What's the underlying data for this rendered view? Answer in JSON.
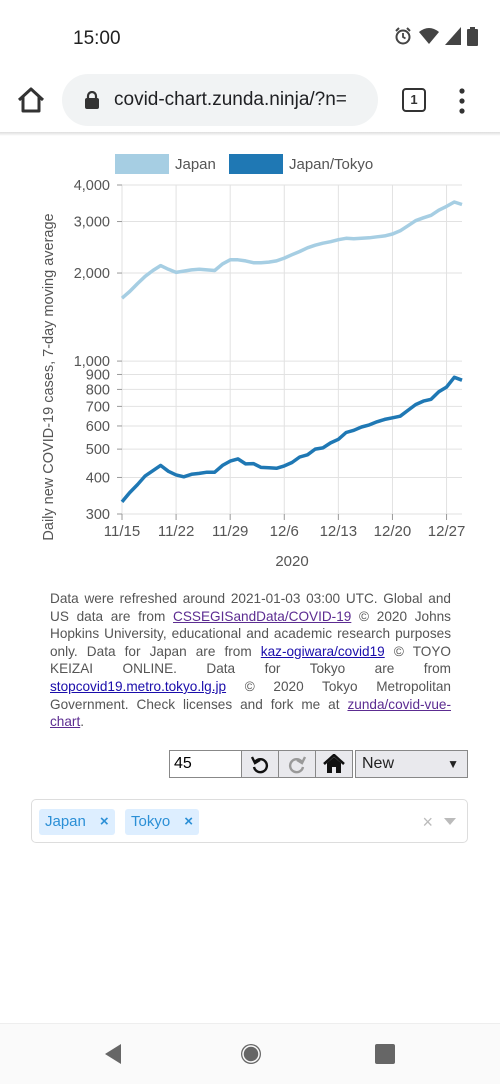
{
  "status_bar": {
    "time": "15:00"
  },
  "browser": {
    "url": "covid-chart.zunda.ninja/?n=",
    "tab_count": "1"
  },
  "chart_data": {
    "type": "line",
    "ylabel": "Daily new COVID-19 cases, 7-day moving average",
    "xlabel": "2020",
    "y_scale": "log",
    "ylim": [
      300,
      4000
    ],
    "y_ticks": [
      "300",
      "400",
      "500",
      "600",
      "700",
      "800",
      "900",
      "1,000",
      "2,000",
      "3,000",
      "4,000"
    ],
    "x_ticks": [
      "11/15",
      "11/22",
      "11/29",
      "12/6",
      "12/13",
      "12/20",
      "12/27"
    ],
    "x": [
      "11/15",
      "11/16",
      "11/17",
      "11/18",
      "11/19",
      "11/20",
      "11/21",
      "11/22",
      "11/23",
      "11/24",
      "11/25",
      "11/26",
      "11/27",
      "11/28",
      "11/29",
      "11/30",
      "12/1",
      "12/2",
      "12/3",
      "12/4",
      "12/5",
      "12/6",
      "12/7",
      "12/8",
      "12/9",
      "12/10",
      "12/11",
      "12/12",
      "12/13",
      "12/14",
      "12/15",
      "12/16",
      "12/17",
      "12/18",
      "12/19",
      "12/20",
      "12/21",
      "12/22",
      "12/23",
      "12/24",
      "12/25",
      "12/26",
      "12/27",
      "12/28",
      "12/29"
    ],
    "series": [
      {
        "name": "Japan",
        "color": "#a6cee3",
        "values": [
          1640,
          1730,
          1840,
          1950,
          2040,
          2120,
          2060,
          2010,
          2030,
          2050,
          2060,
          2050,
          2040,
          2150,
          2220,
          2220,
          2200,
          2170,
          2170,
          2180,
          2200,
          2250,
          2310,
          2370,
          2440,
          2490,
          2530,
          2560,
          2600,
          2630,
          2620,
          2630,
          2640,
          2660,
          2680,
          2720,
          2790,
          2900,
          3020,
          3090,
          3150,
          3280,
          3380,
          3500,
          3430
        ]
      },
      {
        "name": "Japan/Tokyo",
        "color": "#1f78b4",
        "values": [
          330,
          355,
          378,
          405,
          422,
          440,
          420,
          408,
          402,
          410,
          413,
          417,
          417,
          440,
          455,
          463,
          445,
          446,
          433,
          432,
          430,
          438,
          450,
          470,
          478,
          500,
          505,
          525,
          540,
          570,
          580,
          595,
          605,
          620,
          632,
          640,
          648,
          678,
          710,
          730,
          740,
          785,
          815,
          880,
          860
        ]
      }
    ],
    "legend_position": "top"
  },
  "footnote": {
    "t1": "Data were refreshed around 2021-01-03 03:00 UTC. Global and US data are from ",
    "l1": "CSSEGISandData/COVID-19",
    "t2": " © 2020 Johns Hopkins University, educational and academic research purposes only. Data for Japan are from ",
    "l2": "kaz-ogiwara/covid19",
    "t3": " © TOYO KEIZAI ONLINE. Data for Tokyo are from ",
    "l3": "stopcovid19.metro.tokyo.lg.jp",
    "t4": " © 2020 Tokyo Metropolitan Government. Check licenses and fork me at ",
    "l4": "zunda/covid-vue-chart",
    "t5": "."
  },
  "controls": {
    "days_value": "45",
    "mode_selected": "New"
  },
  "tags": [
    "Japan",
    "Tokyo"
  ],
  "tag_remove_glyph": "×",
  "clear_glyph": "×"
}
